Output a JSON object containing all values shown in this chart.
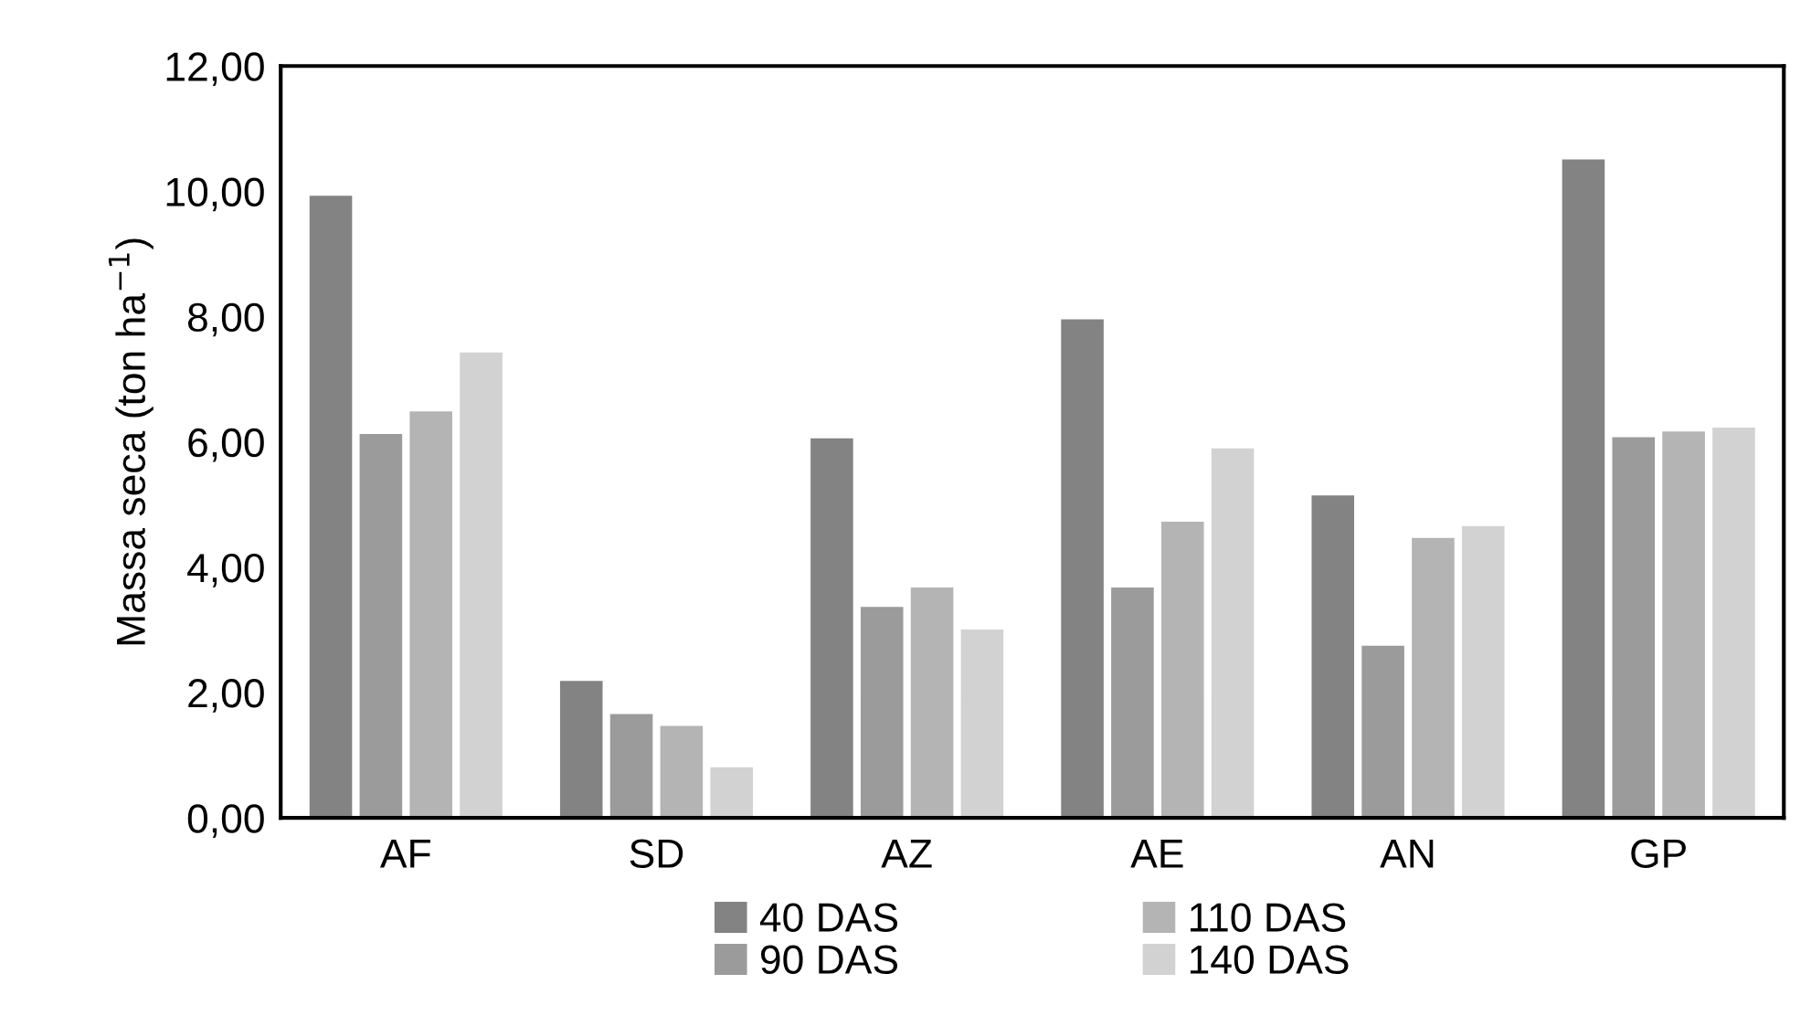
{
  "chart_data": {
    "type": "bar",
    "ylabel": "Massa seca (ton ha$^{−1}$)",
    "categories": [
      "AF",
      "SD",
      "AZ",
      "AE",
      "AN",
      "GP"
    ],
    "series": [
      {
        "name": "40 DAS",
        "color": "#838383",
        "values": [
          9.94,
          2.2,
          6.07,
          7.97,
          5.16,
          10.52
        ]
      },
      {
        "name": "90 DAS",
        "color": "#9b9b9b",
        "values": [
          6.14,
          1.67,
          3.38,
          3.69,
          2.76,
          6.09
        ]
      },
      {
        "name": "110 DAS",
        "color": "#b4b4b4",
        "values": [
          6.5,
          1.48,
          3.69,
          4.74,
          4.48,
          6.18
        ]
      },
      {
        "name": "140 DAS",
        "color": "#d2d2d2",
        "values": [
          7.44,
          0.82,
          3.02,
          5.91,
          4.67,
          6.24
        ]
      }
    ],
    "ylim": [
      0,
      12
    ],
    "yticks": [
      {
        "value": 0,
        "label": "0,00"
      },
      {
        "value": 2,
        "label": "2,00"
      },
      {
        "value": 4,
        "label": "4,00"
      },
      {
        "value": 6,
        "label": "6,00"
      },
      {
        "value": 8,
        "label": "8,00"
      },
      {
        "value": 10,
        "label": "10,00"
      },
      {
        "value": 12,
        "label": "12,00"
      }
    ],
    "grid": false,
    "legend": "bottom"
  }
}
